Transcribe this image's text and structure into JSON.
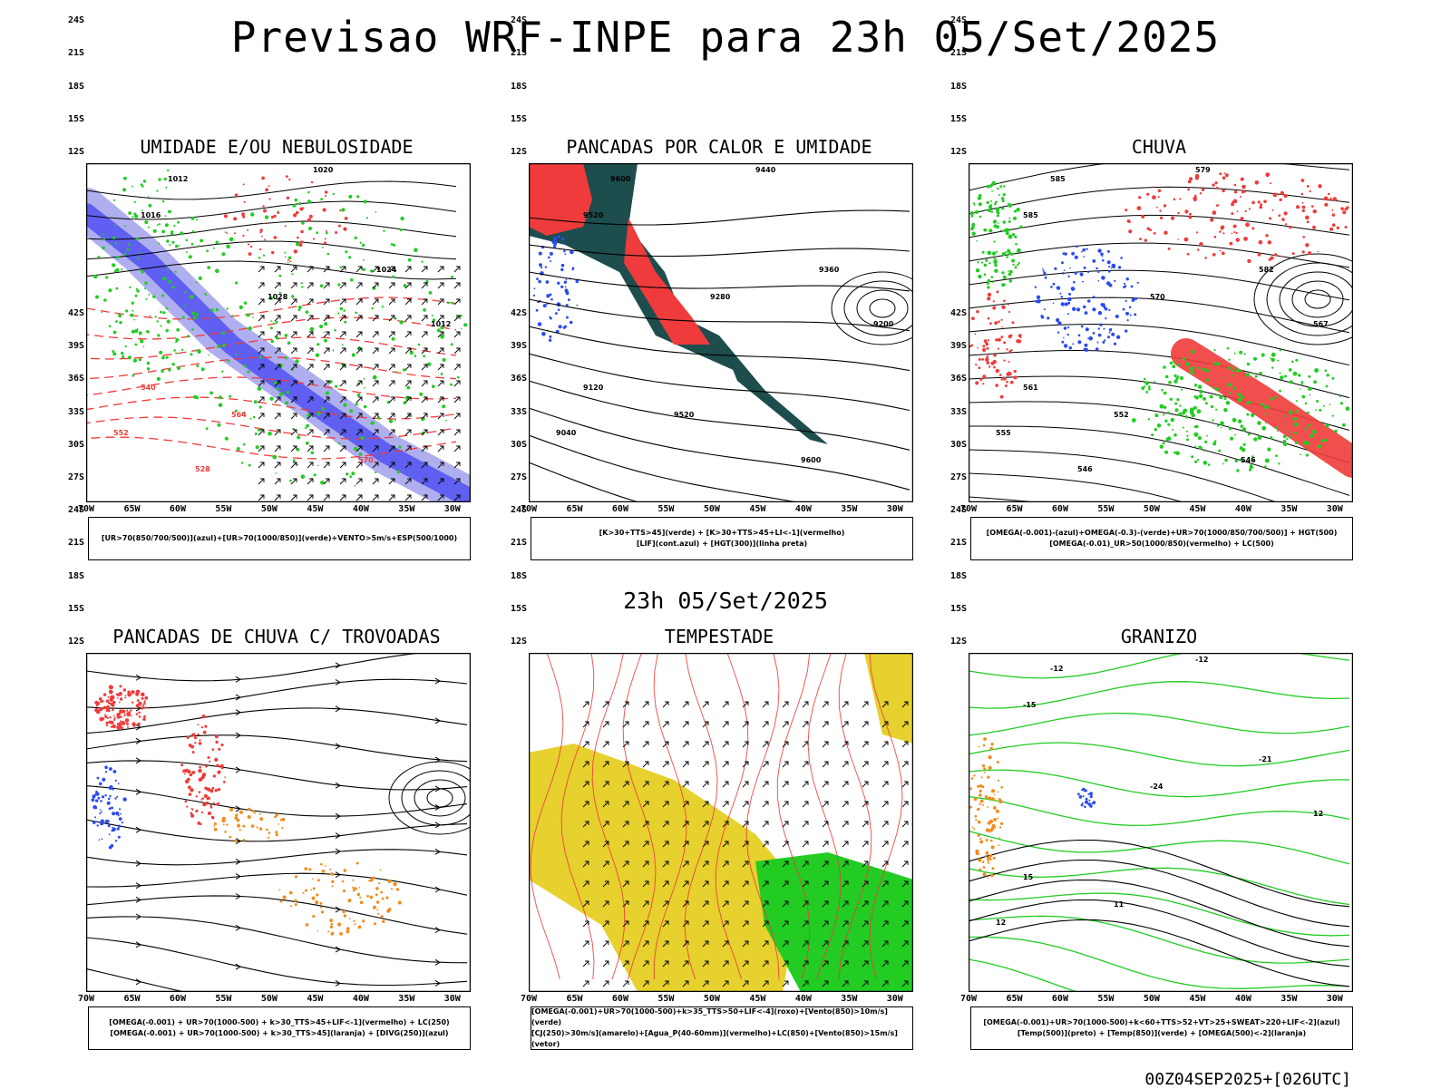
{
  "title": "Previsao WRF-INPE  para 23h 05/Set/2025",
  "subtitle": "23h 05/Set/2025",
  "footer": "00Z04SEP2025+[026UTC]",
  "axes": {
    "lat_labels": [
      "12S",
      "15S",
      "18S",
      "21S",
      "24S",
      "27S",
      "30S",
      "33S",
      "36S",
      "39S",
      "42S"
    ],
    "lon_labels": [
      "70W",
      "65W",
      "60W",
      "55W",
      "50W",
      "45W",
      "40W",
      "35W",
      "30W"
    ]
  },
  "colors": {
    "humid_blue": "#5b5bf0",
    "light_blue": "#a6a6ee",
    "green": "#22cc22",
    "red": "#ef3b3b",
    "dark_teal": "#1d4d4d",
    "orange": "#f08c1c",
    "yellow": "#e6d12e",
    "blue": "#2a4bf0"
  },
  "panels": [
    {
      "title": "UMIDADE E/OU NEBULOSIDADE",
      "legend_lines": [
        "[UR>70(850/700/500)](azul)+[UR>70(1000/850)](verde)+VENTO>5m/s+ESP(500/1000)"
      ],
      "labels": [
        "1012",
        "1016",
        "1020",
        "1024",
        "1028",
        "1012",
        "540",
        "552",
        "564",
        "570",
        "528"
      ]
    },
    {
      "title": "PANCADAS POR CALOR E UMIDADE",
      "legend_lines": [
        "[K>30+TTS>45](verde) + [K>30+TTS>45+LI<-1](vermelho)",
        "[LIF](cont.azul) + [HGT(300)](linha preta)"
      ],
      "labels": [
        "9600",
        "9520",
        "9440",
        "9360",
        "9280",
        "9200",
        "9120",
        "9040",
        "9520",
        "9600"
      ]
    },
    {
      "title": "CHUVA",
      "legend_lines": [
        "[OMEGA(-0.001)-(azul)+OMEGA(-0.3)-(verde)+UR>70(1000/850/700/500)] + HGT(500)",
        "[OMEGA(-0.01)_UR>50(1000/850)(vermelho) + LC(500)"
      ],
      "labels": [
        "585",
        "585",
        "579",
        "582",
        "570",
        "567",
        "561",
        "555",
        "552",
        "546",
        "546"
      ]
    },
    {
      "title": "PANCADAS DE CHUVA C/ TROVOADAS",
      "legend_lines": [
        "[OMEGA(-0.001) + UR>70(1000-500) + k>30_TTS>45+LIF<-1](vermelho) + LC(250)",
        "[OMEGA(-0.001) + UR>70(1000-500) + k>30_TTS>45](laranja) + [DIVG(250)](azul)"
      ],
      "labels": []
    },
    {
      "title": "TEMPESTADE",
      "legend_lines": [
        "[OMEGA(-0.001)+UR>70(1000-500)+k>35_TTS>50+LIF<-4](roxo)+[Vento(850)>10m/s](verde)",
        "[CJ(250)>30m/s](amarelo)+[Agua_P(40-60mm)](vermelho)+LC(850)+[Vento(850)>15m/s](vetor)"
      ],
      "labels": []
    },
    {
      "title": "GRANIZO",
      "legend_lines": [
        "[OMEGA(-0.001)+UR>70(1000-500)+k<60+TTS>52+VT>25+SWEAT>220+LIF<-2](azul)",
        "[Temp(500)](preto) + [Temp(850)](verde) + [OMEGA(500)<-2](laranja)"
      ],
      "labels": [
        "-12",
        "-15",
        "-12",
        "-21",
        "-24",
        "12",
        "15",
        "12",
        "11"
      ]
    }
  ]
}
